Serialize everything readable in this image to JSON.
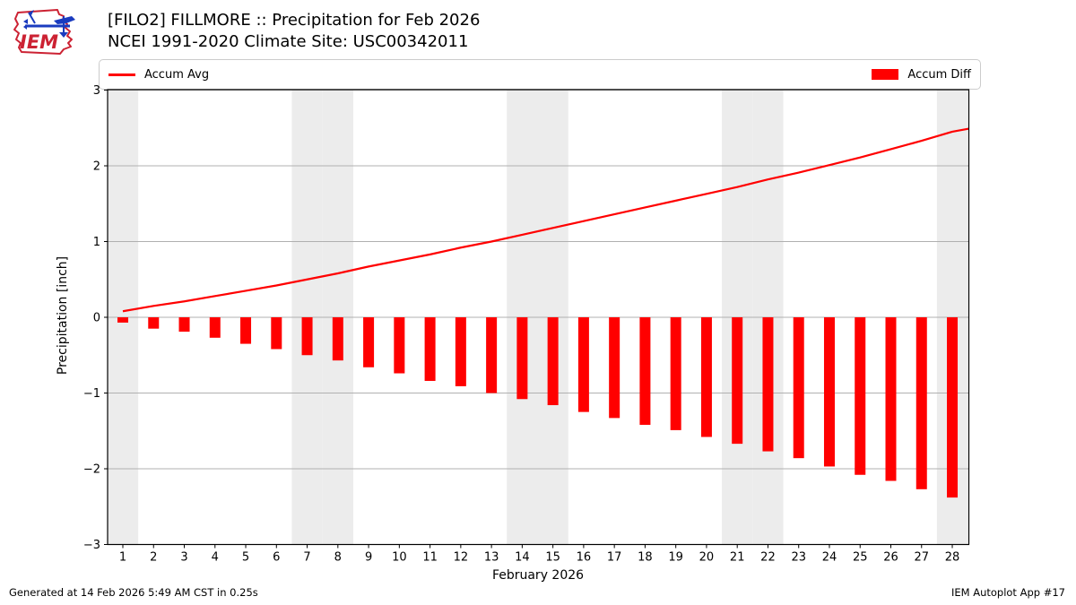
{
  "header": {
    "title_line1": "[FILO2] FILLMORE :: Precipitation for Feb 2026",
    "title_line2": "NCEI 1991-2020 Climate Site: USC00342011",
    "logo_text": "IEM"
  },
  "legend": {
    "avg_label": "Accum Avg",
    "diff_label": "Accum Diff"
  },
  "footer": {
    "left": "Generated at 14 Feb 2026 5:49 AM CST in 0.25s",
    "right": "IEM Autoplot App #17"
  },
  "colors": {
    "series_red": "#ff0000",
    "weekend_band": "#ececec",
    "gridline": "#b0b0b0",
    "spine": "#000000",
    "logo_red": "#cc2233",
    "logo_blue": "#1a3bbf"
  },
  "chart_data": {
    "type": "bar",
    "title": "[FILO2] FILLMORE :: Precipitation for Feb 2026",
    "subtitle": "NCEI 1991-2020 Climate Site: USC00342011",
    "xlabel": "February 2026",
    "ylabel": "Precipitation [inch]",
    "ylim": [
      -3,
      3
    ],
    "yticks": [
      3,
      2,
      1,
      0,
      -1,
      -2,
      -3
    ],
    "grid": "horizontal",
    "legend_position": "top",
    "categories": [
      1,
      2,
      3,
      4,
      5,
      6,
      7,
      8,
      9,
      10,
      11,
      12,
      13,
      14,
      15,
      16,
      17,
      18,
      19,
      20,
      21,
      22,
      23,
      24,
      25,
      26,
      27,
      28
    ],
    "weekend_shaded_days": [
      1,
      7,
      8,
      14,
      15,
      21,
      22,
      28
    ],
    "series": [
      {
        "name": "Accum Avg",
        "type": "line",
        "color": "#ff0000",
        "values": [
          0.08,
          0.15,
          0.21,
          0.28,
          0.35,
          0.42,
          0.5,
          0.58,
          0.67,
          0.75,
          0.83,
          0.92,
          1.0,
          1.09,
          1.18,
          1.27,
          1.36,
          1.45,
          1.54,
          1.63,
          1.72,
          1.82,
          1.91,
          2.01,
          2.11,
          2.22,
          2.33,
          2.45
        ],
        "right_edge_value": 2.49
      },
      {
        "name": "Accum Diff",
        "type": "bar",
        "color": "#ff0000",
        "values": [
          -0.07,
          -0.15,
          -0.19,
          -0.27,
          -0.35,
          -0.42,
          -0.5,
          -0.57,
          -0.66,
          -0.74,
          -0.84,
          -0.91,
          -1.0,
          -1.08,
          -1.16,
          -1.25,
          -1.33,
          -1.42,
          -1.49,
          -1.58,
          -1.67,
          -1.77,
          -1.86,
          -1.97,
          -2.08,
          -2.16,
          -2.27,
          -2.38
        ]
      }
    ]
  }
}
